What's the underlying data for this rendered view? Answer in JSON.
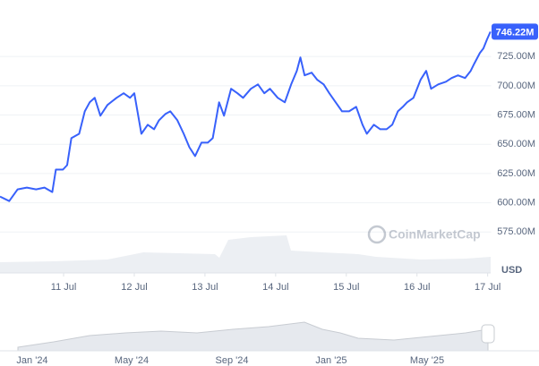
{
  "chart_data": {
    "type": "line",
    "xlim": [
      10.1,
      17.05
    ],
    "xticks": [
      {
        "value": 11,
        "label": "11 Jul"
      },
      {
        "value": 12,
        "label": "12 Jul"
      },
      {
        "value": 13,
        "label": "13 Jul"
      },
      {
        "value": 14,
        "label": "14 Jul"
      },
      {
        "value": 15,
        "label": "15 Jul"
      },
      {
        "value": 16,
        "label": "16 Jul"
      },
      {
        "value": 17,
        "label": "17 Jul"
      }
    ],
    "ylim": [
      550,
      758
    ],
    "yticks": [
      {
        "value": 575,
        "label": "575.00M"
      },
      {
        "value": 600,
        "label": "600.00M"
      },
      {
        "value": 625,
        "label": "625.00M"
      },
      {
        "value": 650,
        "label": "650.00M"
      },
      {
        "value": 675,
        "label": "675.00M"
      },
      {
        "value": 700,
        "label": "700.00M"
      },
      {
        "value": 725,
        "label": "725.00M"
      }
    ],
    "grid": true,
    "series": [
      {
        "color": "#3861fb",
        "x": [
          10.1,
          10.23,
          10.35,
          10.48,
          10.61,
          10.73,
          10.84,
          10.89,
          10.99,
          11.05,
          11.11,
          11.22,
          11.3,
          11.37,
          11.44,
          11.52,
          11.62,
          11.75,
          11.85,
          11.94,
          12.0,
          12.1,
          12.19,
          12.28,
          12.35,
          12.44,
          12.51,
          12.61,
          12.7,
          12.78,
          12.86,
          12.95,
          13.04,
          13.11,
          13.2,
          13.27,
          13.37,
          13.46,
          13.54,
          13.65,
          13.75,
          13.84,
          13.92,
          14.03,
          14.13,
          14.22,
          14.3,
          14.35,
          14.41,
          14.51,
          14.59,
          14.68,
          14.76,
          14.85,
          14.94,
          15.04,
          15.14,
          15.23,
          15.29,
          15.39,
          15.48,
          15.57,
          15.65,
          15.73,
          15.8,
          15.86,
          15.95,
          16.05,
          16.13,
          16.2,
          16.3,
          16.41,
          16.49,
          16.58,
          16.68,
          16.76,
          16.81,
          16.89,
          16.94,
          16.99,
          17.04
        ],
        "values": [
          605.3,
          601.5,
          611.5,
          613.0,
          611.5,
          613.0,
          609.2,
          628.4,
          628.4,
          632.2,
          655.2,
          659.0,
          678.2,
          685.9,
          689.7,
          674.4,
          683.6,
          689.7,
          693.6,
          689.7,
          693.6,
          659.0,
          666.7,
          662.9,
          670.5,
          675.9,
          678.2,
          670.5,
          659.0,
          647.5,
          639.9,
          651.4,
          651.4,
          655.2,
          685.9,
          674.4,
          697.4,
          693.6,
          689.7,
          697.4,
          701.2,
          693.6,
          697.4,
          689.7,
          685.9,
          701.2,
          712.7,
          724.2,
          708.9,
          711.2,
          705.1,
          701.2,
          693.6,
          685.9,
          678.2,
          678.2,
          682.0,
          666.7,
          659.0,
          666.7,
          662.9,
          662.9,
          666.7,
          678.2,
          682.0,
          685.9,
          689.7,
          705.1,
          712.7,
          697.4,
          701.2,
          703.5,
          706.6,
          708.9,
          706.6,
          712.7,
          718.9,
          728.1,
          731.9,
          739.6,
          746.22
        ]
      }
    ],
    "last_price": {
      "value": 746.22,
      "label": "746.22M"
    },
    "currency": "USD",
    "watermark": "CoinMarketCap",
    "navigator_labels": [
      "Jan '24",
      "May '24",
      "Sep '24",
      "Jan '25",
      "May '25"
    ]
  }
}
